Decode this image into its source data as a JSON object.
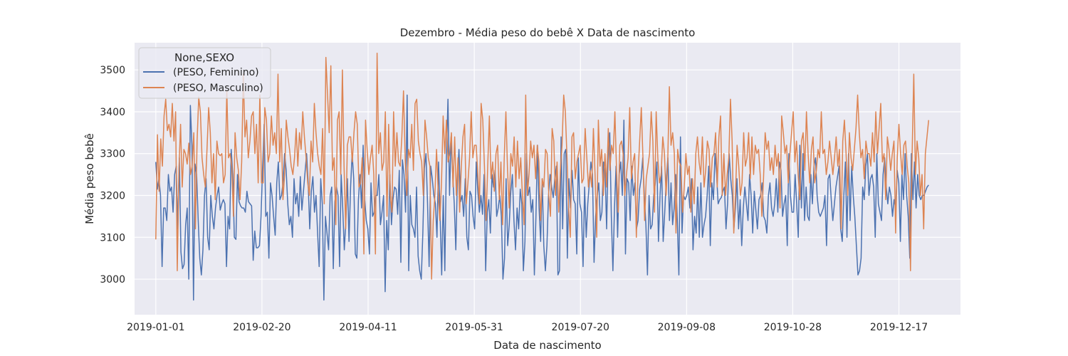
{
  "chart_data": {
    "type": "line",
    "title": "Dezembro - Média peso do bebê X Data de nascimento",
    "xlabel": "Data de nascimento",
    "ylabel": "Média peso bebê",
    "x_start": "2019-01-01",
    "x_end": "2019-12-31",
    "xlim": [
      "2018-12-22",
      "2020-01-15"
    ],
    "ylim": [
      2915,
      3565
    ],
    "grid": true,
    "legend_placement": "top-left",
    "legend_title": "None,SEXO",
    "x_ticks": [
      "2019-01-01",
      "2019-02-20",
      "2019-04-11",
      "2019-05-31",
      "2019-07-20",
      "2019-09-08",
      "2019-10-28",
      "2019-12-17"
    ],
    "y_ticks": [
      3000,
      3100,
      3200,
      3300,
      3400,
      3500
    ],
    "series": [
      {
        "name": "(PESO, Feminino)",
        "color": "#4c72b0",
        "values": [
          3280,
          3215,
          3240,
          3200,
          3030,
          3170,
          3170,
          3140,
          3250,
          3210,
          3220,
          3160,
          3250,
          3270,
          3120,
          3290,
          3065,
          3025,
          3035,
          3130,
          3170,
          3000,
          3415,
          3320,
          2950,
          3275,
          3250,
          3140,
          3050,
          3010,
          3070,
          3200,
          3240,
          3100,
          3070,
          3200,
          3150,
          3120,
          3170,
          3200,
          3220,
          3165,
          3180,
          3190,
          3180,
          3030,
          3150,
          3120,
          3310,
          3250,
          3100,
          3095,
          3250,
          3185,
          3175,
          3170,
          3170,
          3160,
          3210,
          3185,
          3180,
          3175,
          3045,
          3115,
          3075,
          3075,
          3080,
          3150,
          3270,
          3370,
          3150,
          3160,
          3050,
          3230,
          3200,
          3150,
          3105,
          3230,
          3280,
          3190,
          3200,
          3230,
          3300,
          3260,
          3180,
          3130,
          3150,
          3100,
          3240,
          3180,
          3205,
          3150,
          3245,
          3165,
          3210,
          3255,
          3300,
          3230,
          3120,
          3210,
          3245,
          3160,
          3200,
          3110,
          3030,
          3240,
          3180,
          2950,
          3150,
          3110,
          3070,
          3200,
          3220,
          3025,
          3185,
          3220,
          3200,
          3030,
          3250,
          3170,
          3070,
          3140,
          3240,
          3090,
          3220,
          3300,
          3240,
          3060,
          3050,
          3190,
          3250,
          3170,
          3320,
          3190,
          3140,
          3120,
          3060,
          3230,
          3150,
          3160,
          3200,
          3200,
          3250,
          3130,
          3160,
          3200,
          2970,
          3140,
          3070,
          3250,
          3130,
          3190,
          3220,
          3215,
          3155,
          3260,
          3040,
          3285,
          3250,
          3160,
          3440,
          3020,
          3200,
          3130,
          3120,
          3100,
          3220,
          3055,
          3020,
          3000,
          3110,
          3265,
          3300,
          3180,
          3030,
          3270,
          3240,
          3200,
          3180,
          3100,
          3280,
          3150,
          3010,
          3200,
          3020,
          3290,
          3430,
          3200,
          3340,
          3250,
          3180,
          3070,
          3240,
          3310,
          3185,
          3200,
          3150,
          3240,
          3100,
          3070,
          3210,
          3200,
          3150,
          3120,
          3280,
          3210,
          3160,
          3200,
          3155,
          3250,
          3020,
          3160,
          3190,
          3110,
          3250,
          3220,
          3260,
          3150,
          3170,
          3200,
          3150,
          3000,
          3050,
          3240,
          3080,
          3130,
          3210,
          3250,
          3140,
          3070,
          3170,
          3120,
          3215,
          3180,
          3020,
          3090,
          3300,
          3200,
          3220,
          3160,
          3190,
          3010,
          3150,
          3320,
          3170,
          3090,
          3240,
          3080,
          3020,
          3080,
          3200,
          3250,
          3220,
          3195,
          3240,
          3270,
          3010,
          3020,
          3340,
          3120,
          3300,
          3310,
          3050,
          3240,
          3170,
          3260,
          3190,
          3180,
          3060,
          3290,
          3180,
          3160,
          3030,
          3220,
          3100,
          3180,
          3230,
          3280,
          3250,
          3040,
          3150,
          3200,
          3230,
          3140,
          3160,
          3280,
          3260,
          3120,
          3310,
          3350,
          3150,
          3020,
          3170,
          3270,
          3100,
          3250,
          3280,
          3200,
          3380,
          3060,
          3240,
          3230,
          3140,
          3270,
          3200,
          3230,
          3120,
          3140,
          3215,
          3240,
          3290,
          3200,
          3130,
          3010,
          3200,
          3120,
          3130,
          3200,
          3230,
          3280,
          3090,
          3200,
          3270,
          3090,
          3160,
          3240,
          3290,
          3140,
          3230,
          3130,
          3170,
          3250,
          3140,
          3010,
          3340,
          3110,
          3200,
          3190,
          3200,
          3220,
          3170,
          3240,
          3070,
          3150,
          3110,
          3220,
          3100,
          3230,
          3100,
          3130,
          3150,
          3200,
          3270,
          3080,
          3230,
          3190,
          3300,
          3250,
          3180,
          3190,
          3195,
          3210,
          3220,
          3120,
          3180,
          3300,
          3240,
          3200,
          3120,
          3170,
          3240,
          3120,
          3190,
          3080,
          3170,
          3220,
          3180,
          3140,
          3250,
          3200,
          3110,
          3210,
          3165,
          3120,
          3190,
          3200,
          3230,
          3150,
          3140,
          3110,
          3200,
          3230,
          3170,
          3150,
          3180,
          3240,
          3160,
          3280,
          3260,
          3150,
          3180,
          3200,
          3080,
          3300,
          3200,
          3160,
          3160,
          3250,
          3180,
          3100,
          3320,
          3170,
          3300,
          3140,
          3220,
          3150,
          3140,
          3250,
          3180,
          3270,
          3290,
          3200,
          3160,
          3150,
          3160,
          3170,
          3200,
          3080,
          3240,
          3250,
          3190,
          3140,
          3180,
          3220,
          3245,
          3270,
          3120,
          3090,
          3200,
          3280,
          3100,
          3300,
          3140,
          3270,
          3200,
          3150,
          3080,
          3010,
          3020,
          3050,
          3220,
          3190,
          3270,
          3300,
          3200,
          3240,
          3250,
          3220,
          3100,
          3300,
          3180,
          3160,
          3140,
          3250,
          3290,
          3220,
          3180,
          3220,
          3200,
          3150,
          3190,
          3170,
          3260,
          3230,
          3090,
          3250,
          3190,
          3300,
          3200,
          3150,
          3050,
          3300,
          3190,
          3280,
          3170,
          3250,
          3200,
          3190,
          3200,
          3200,
          3210,
          3220,
          3225
        ]
      },
      {
        "name": "(PESO, Masculino)",
        "color": "#dd8452",
        "values": [
          3095,
          3345,
          3210,
          3335,
          3270,
          3390,
          3430,
          3355,
          3370,
          3340,
          3420,
          3330,
          3400,
          3020,
          3260,
          3370,
          3220,
          3310,
          3300,
          3275,
          3325,
          3250,
          3270,
          3350,
          3120,
          3330,
          3435,
          3400,
          3290,
          3250,
          3220,
          3310,
          3410,
          3350,
          3230,
          3300,
          3190,
          3330,
          3300,
          3295,
          3300,
          3230,
          3250,
          3450,
          3290,
          3300,
          3270,
          3150,
          3350,
          3290,
          3260,
          3190,
          3280,
          3490,
          3340,
          3380,
          3290,
          3330,
          3390,
          3400,
          3300,
          3370,
          3230,
          3440,
          3230,
          3230,
          3410,
          3380,
          3280,
          3300,
          3390,
          3320,
          3350,
          3300,
          3490,
          3280,
          3360,
          3190,
          3250,
          3380,
          3340,
          3310,
          3270,
          3250,
          3290,
          3360,
          3270,
          3350,
          3310,
          3400,
          3340,
          3290,
          3230,
          3200,
          3330,
          3280,
          3420,
          3350,
          3300,
          3270,
          3250,
          3360,
          3180,
          3530,
          3440,
          3350,
          3510,
          3260,
          3290,
          3130,
          3380,
          3400,
          3250,
          3500,
          3270,
          3120,
          3320,
          3340,
          3340,
          3280,
          3350,
          3400,
          3370,
          3220,
          3230,
          3290,
          3060,
          3380,
          3310,
          3250,
          3290,
          3320,
          3250,
          3060,
          3540,
          3300,
          3350,
          3260,
          3280,
          3400,
          3150,
          3370,
          3200,
          3160,
          3400,
          3270,
          3350,
          3280,
          3270,
          3340,
          3450,
          3290,
          3200,
          3310,
          3290,
          3370,
          3260,
          3420,
          3430,
          3330,
          3300,
          3280,
          3200,
          3380,
          3340,
          3290,
          3270,
          3000,
          3140,
          3200,
          3310,
          3210,
          3140,
          3230,
          3390,
          3300,
          3380,
          3280,
          3300,
          3350,
          3220,
          3340,
          3200,
          3290,
          3160,
          3270,
          3340,
          3370,
          3180,
          3230,
          3290,
          3400,
          3290,
          3320,
          3320,
          3250,
          3180,
          3420,
          3380,
          3270,
          3140,
          3270,
          3390,
          3240,
          3280,
          3210,
          3300,
          3320,
          3190,
          3280,
          3130,
          3290,
          3400,
          3260,
          3170,
          3300,
          3270,
          3340,
          3220,
          3330,
          3240,
          3290,
          3200,
          3130,
          3440,
          3200,
          3250,
          3330,
          3290,
          3320,
          3240,
          3320,
          3280,
          3140,
          3240,
          3220,
          3310,
          3300,
          3200,
          3150,
          3360,
          3330,
          3200,
          3280,
          3160,
          3260,
          3320,
          3440,
          3400,
          3290,
          3170,
          3100,
          3340,
          3350,
          3240,
          3280,
          3300,
          3320,
          3230,
          3240,
          3360,
          3290,
          3220,
          3260,
          3220,
          3360,
          3250,
          3100,
          3380,
          3270,
          3310,
          3200,
          3300,
          3220,
          3360,
          3260,
          3320,
          3300,
          3400,
          3260,
          3160,
          3320,
          3330,
          3300,
          3200,
          3250,
          3290,
          3410,
          3240,
          3280,
          3300,
          3100,
          3250,
          3330,
          3410,
          3290,
          3140,
          3240,
          3270,
          3300,
          3400,
          3330,
          3160,
          3400,
          3290,
          3230,
          3250,
          3340,
          3300,
          3200,
          3280,
          3460,
          3320,
          3350,
          3300,
          3110,
          3310,
          3280,
          3270,
          3160,
          3220,
          3300,
          3250,
          3270,
          3160,
          3240,
          3180,
          3300,
          3340,
          3280,
          3250,
          3340,
          3220,
          3260,
          3330,
          3310,
          3220,
          3290,
          3300,
          3350,
          3220,
          3340,
          3390,
          3200,
          3300,
          3200,
          3250,
          3290,
          3430,
          3330,
          3110,
          3200,
          3320,
          3270,
          3200,
          3230,
          3350,
          3270,
          3290,
          3350,
          3240,
          3340,
          3250,
          3320,
          3300,
          3310,
          3250,
          3150,
          3240,
          3350,
          3310,
          3330,
          3260,
          3290,
          3250,
          3320,
          3270,
          3300,
          3170,
          3390,
          3350,
          3300,
          3320,
          3230,
          3300,
          3350,
          3400,
          3280,
          3330,
          3250,
          3190,
          3330,
          3350,
          3260,
          3400,
          3300,
          3230,
          3310,
          3340,
          3230,
          3260,
          3310,
          3290,
          3400,
          3300,
          3310,
          3250,
          3280,
          3330,
          3290,
          3250,
          3290,
          3340,
          3270,
          3310,
          3120,
          3330,
          3380,
          3300,
          3200,
          3350,
          3290,
          3260,
          3310,
          3360,
          3440,
          3350,
          3290,
          3310,
          3240,
          3330,
          3300,
          3300,
          3270,
          3350,
          3280,
          3400,
          3300,
          3360,
          3420,
          3280,
          3300,
          3190,
          3340,
          3310,
          3260,
          3300,
          3330,
          3110,
          3290,
          3370,
          3300,
          3250,
          3320,
          3330,
          3270,
          3230,
          3020,
          3300,
          3490,
          3250,
          3330,
          3290,
          3200,
          3250,
          3120,
          3300,
          3340,
          3380
        ]
      }
    ]
  }
}
